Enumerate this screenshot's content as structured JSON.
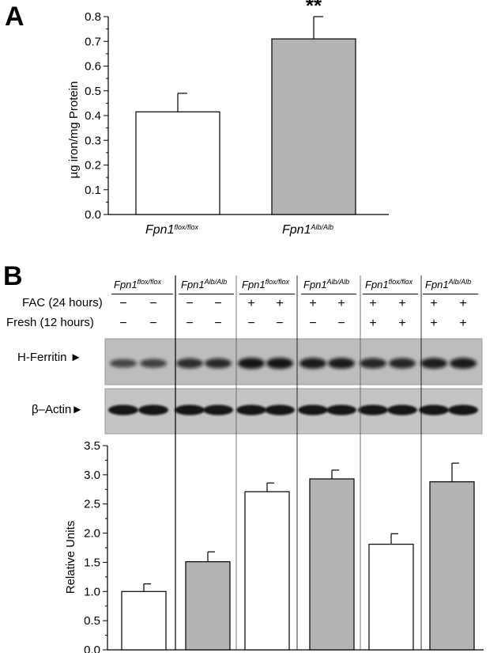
{
  "panelA": {
    "letter": "A",
    "chart_data": {
      "type": "bar",
      "categories": [
        {
          "name": "Fpn1",
          "sup": "flox/flox"
        },
        {
          "name": "Fpn1",
          "sup": "Alb/Alb"
        }
      ],
      "values": [
        0.415,
        0.71
      ],
      "errors": [
        0.075,
        0.09
      ],
      "colors": [
        "#ffffff",
        "#b3b3b3"
      ],
      "ylabel": "µg iron/mg Protein",
      "ylim": [
        0,
        0.8
      ],
      "yticks": [
        "0.0",
        "0.1",
        "0.2",
        "0.3",
        "0.4",
        "0.5",
        "0.6",
        "0.7",
        "0.8"
      ],
      "annotation": "**",
      "annotation_index": 1
    }
  },
  "panelB": {
    "letter": "B",
    "groups": [
      {
        "name": "Fpn1",
        "sup": "flox/flox"
      },
      {
        "name": "Fpn1",
        "sup": "Alb/Alb"
      },
      {
        "name": "Fpn1",
        "sup": "flox/flox"
      },
      {
        "name": "Fpn1",
        "sup": "Alb/Alb"
      },
      {
        "name": "Fpn1",
        "sup": "flox/flox"
      },
      {
        "name": "Fpn1",
        "sup": "Alb/Alb"
      }
    ],
    "treatments": [
      {
        "label": "FAC (24 hours)",
        "signs": [
          "−",
          "−",
          "−",
          "−",
          "+",
          "+",
          "+",
          "+",
          "+",
          "+",
          "+",
          "+"
        ]
      },
      {
        "label": "Fresh (12 hours)",
        "signs": [
          "−",
          "−",
          "−",
          "−",
          "−",
          "−",
          "−",
          "−",
          "+",
          "+",
          "+",
          "+"
        ]
      }
    ],
    "blot_labels": {
      "ferritin": "H-Ferritin",
      "actin": "β–Actin"
    },
    "chart_data": {
      "type": "bar",
      "values": [
        1.0,
        1.51,
        2.71,
        2.93,
        1.81,
        2.88
      ],
      "errors": [
        0.13,
        0.17,
        0.15,
        0.15,
        0.18,
        0.32
      ],
      "colors": [
        "#ffffff",
        "#b3b3b3",
        "#ffffff",
        "#b3b3b3",
        "#ffffff",
        "#b3b3b3"
      ],
      "ylabel": "Relative Units",
      "ylim": [
        0,
        3.5
      ],
      "yticks": [
        "0.0",
        "0.5",
        "1.0",
        "1.5",
        "2.0",
        "2.5",
        "3.0",
        "3.5"
      ]
    }
  }
}
